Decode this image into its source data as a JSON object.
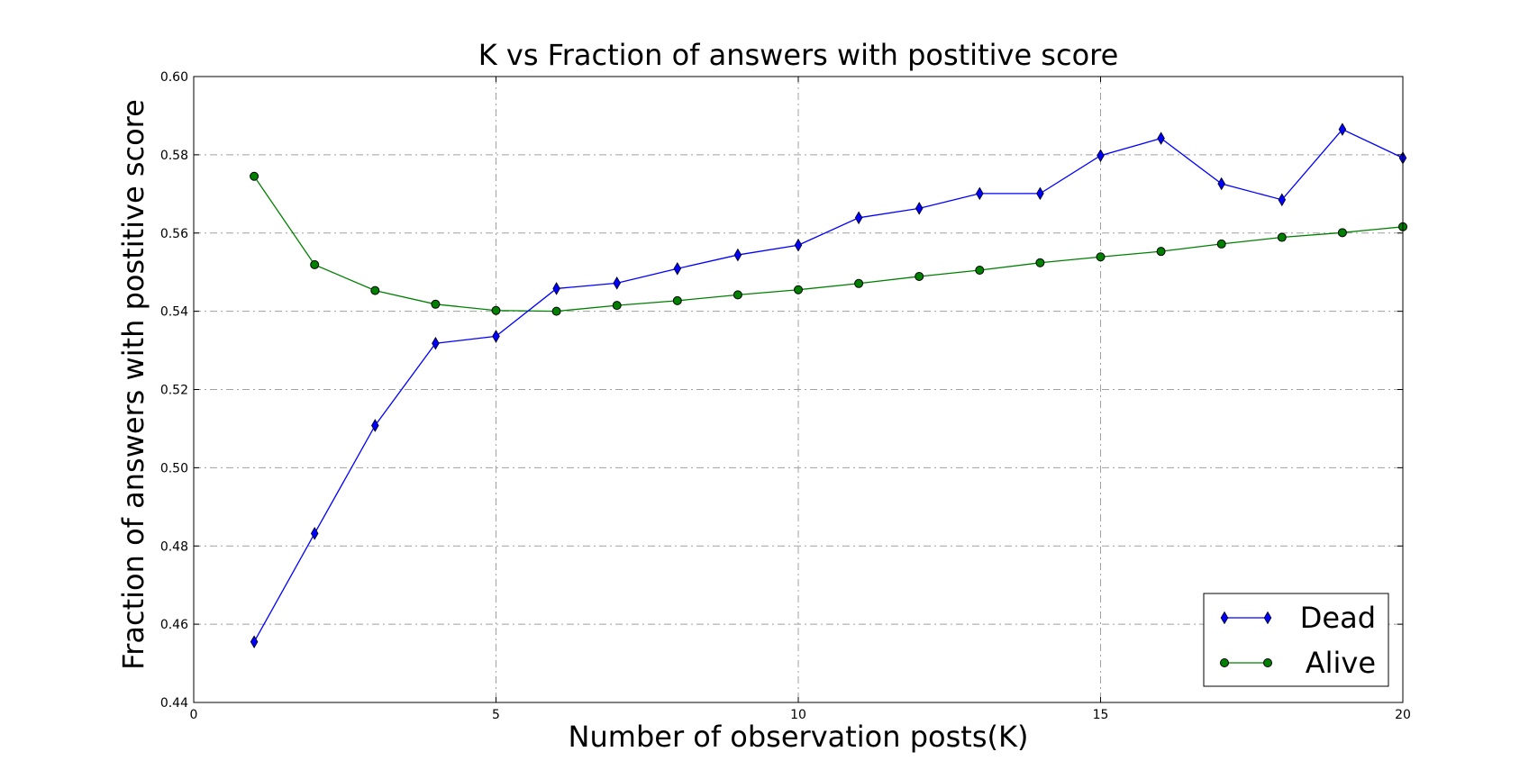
{
  "chart_data": {
    "type": "line",
    "title": "K vs Fraction of answers with postitive score",
    "xlabel": "Number of observation posts(K)",
    "ylabel": "Fraction of answers with postitive score",
    "xlim": [
      0,
      20
    ],
    "ylim": [
      0.44,
      0.6
    ],
    "xticks": [
      0,
      5,
      10,
      15,
      20
    ],
    "xtick_labels": [
      "0",
      "5",
      "10",
      "15",
      "20"
    ],
    "yticks": [
      0.44,
      0.46,
      0.48,
      0.5,
      0.52,
      0.54,
      0.56,
      0.58,
      0.6
    ],
    "ytick_labels": [
      "0.44",
      "0.46",
      "0.48",
      "0.50",
      "0.52",
      "0.54",
      "0.56",
      "0.58",
      "0.60"
    ],
    "grid": true,
    "legend_position": "lower-right",
    "x": [
      1,
      2,
      3,
      4,
      5,
      6,
      7,
      8,
      9,
      10,
      11,
      12,
      13,
      14,
      15,
      16,
      17,
      18,
      19,
      20
    ],
    "series": [
      {
        "name": "Dead",
        "color": "#0000ff",
        "marker": "thin-diamond",
        "values": [
          0.4555,
          0.4832,
          0.5108,
          0.5318,
          0.5336,
          0.5458,
          0.5472,
          0.5509,
          0.5544,
          0.5569,
          0.5639,
          0.5663,
          0.5701,
          0.5701,
          0.5798,
          0.5842,
          0.5726,
          0.5685,
          0.5865,
          0.5792
        ]
      },
      {
        "name": "Alive",
        "color": "#008000",
        "marker": "circle",
        "values": [
          0.5745,
          0.5519,
          0.5453,
          0.5418,
          0.5402,
          0.54,
          0.5415,
          0.5427,
          0.5442,
          0.5455,
          0.5471,
          0.5489,
          0.5505,
          0.5524,
          0.5539,
          0.5553,
          0.5572,
          0.5589,
          0.5601,
          0.5616
        ]
      }
    ]
  }
}
